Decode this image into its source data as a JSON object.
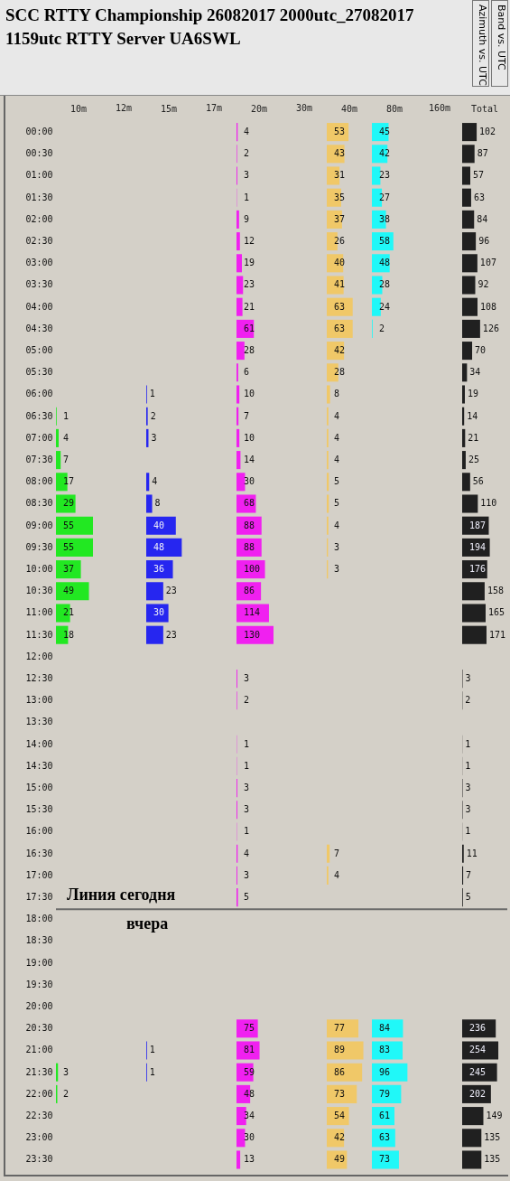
{
  "chart_data": [
    {
      "type": "other",
      "title": "SCC RTTY Championship 26082017 2000utc_27082017 1159utc RTTY Server UA6SWL",
      "annotations": [
        "Azimuth vs. UTC",
        "Band vs. UTC"
      ]
    },
    {
      "type": "bar",
      "orientation": "horizontal",
      "title": "10m",
      "tick_labels": "y",
      "data_labels": true,
      "categories": [
        "00:00",
        "00:30",
        "01:00",
        "01:30",
        "02:00",
        "02:30",
        "03:00",
        "03:30",
        "04:00",
        "04:30",
        "05:00",
        "05:30",
        "06:00",
        "06:30",
        "07:00",
        "07:30",
        "08:00",
        "08:30",
        "09:00",
        "09:30",
        "10:00",
        "10:30",
        "11:00",
        "11:30",
        "12:00",
        "12:30",
        "13:00",
        "13:30",
        "14:00",
        "14:30",
        "15:00",
        "15:30",
        "16:00",
        "16:30",
        "17:00",
        "17:30",
        "18:00",
        "18:30",
        "19:00",
        "19:30",
        "20:00",
        "20:30",
        "21:00",
        "21:30",
        "22:00",
        "22:30",
        "23:00",
        "23:30"
      ],
      "series": [
        {
          "color": "#22e822",
          "values": [
            null,
            null,
            null,
            null,
            null,
            null,
            null,
            null,
            null,
            null,
            null,
            null,
            null,
            1,
            4,
            7,
            17,
            29,
            55,
            55,
            37,
            49,
            21,
            18,
            null,
            null,
            null,
            null,
            null,
            null,
            null,
            null,
            null,
            null,
            null,
            null,
            null,
            null,
            null,
            null,
            null,
            null,
            null,
            3,
            2,
            null,
            null,
            null
          ]
        }
      ],
      "ref_lines": [
        {
          "axis": "y",
          "value": "18:00",
          "label": "Линия сегодня"
        }
      ],
      "annotations": [
        "вчера"
      ]
    },
    {
      "type": "other",
      "title": "12m"
    },
    {
      "type": "bar",
      "orientation": "horizontal",
      "title": "15m",
      "tick_labels": false,
      "data_labels": true,
      "categories": [
        null,
        null,
        null,
        null,
        null,
        null,
        null,
        null,
        null,
        null,
        null,
        null,
        null,
        null,
        null,
        null,
        null,
        null,
        null,
        null,
        null,
        null,
        null,
        null,
        null,
        null,
        null,
        null,
        null,
        null,
        null,
        null,
        null,
        null,
        null,
        null,
        null,
        null,
        null,
        null,
        null,
        null,
        null,
        null,
        null,
        null,
        null,
        null
      ],
      "series": [
        {
          "color": "#2626f0",
          "values": [
            null,
            null,
            null,
            null,
            null,
            null,
            null,
            null,
            null,
            null,
            null,
            null,
            1,
            2,
            3,
            null,
            4,
            8,
            40,
            48,
            36,
            23,
            30,
            23,
            null,
            null,
            null,
            null,
            null,
            null,
            null,
            null,
            null,
            null,
            null,
            null,
            null,
            null,
            null,
            null,
            null,
            null,
            1,
            1,
            null,
            null,
            null,
            null
          ]
        }
      ]
    },
    {
      "type": "other",
      "title": "17m"
    },
    {
      "type": "bar",
      "orientation": "horizontal",
      "title": "20m",
      "tick_labels": false,
      "data_labels": true,
      "categories": [
        null,
        null,
        null,
        null,
        null,
        null,
        null,
        null,
        null,
        null,
        null,
        null,
        null,
        null,
        null,
        null,
        null,
        null,
        null,
        null,
        null,
        null,
        null,
        null,
        null,
        null,
        null,
        null,
        null,
        null,
        null,
        null,
        null,
        null,
        null,
        null,
        null,
        null,
        null,
        null,
        null,
        null,
        null,
        null,
        null,
        null,
        null,
        null
      ],
      "series": [
        {
          "color": "#f020f0",
          "values": [
            4,
            2,
            3,
            1,
            9,
            12,
            19,
            23,
            21,
            61,
            28,
            6,
            10,
            7,
            10,
            14,
            30,
            68,
            88,
            88,
            100,
            86,
            114,
            130,
            null,
            3,
            2,
            null,
            1,
            1,
            3,
            3,
            1,
            4,
            3,
            5,
            null,
            null,
            null,
            null,
            null,
            75,
            81,
            59,
            48,
            34,
            30,
            13
          ]
        }
      ]
    },
    {
      "type": "other",
      "title": "30m"
    },
    {
      "type": "bar",
      "orientation": "horizontal",
      "title": "40m",
      "tick_labels": false,
      "data_labels": true,
      "categories": [
        null,
        null,
        null,
        null,
        null,
        null,
        null,
        null,
        null,
        null,
        null,
        null,
        null,
        null,
        null,
        null,
        null,
        null,
        null,
        null,
        null,
        null,
        null,
        null,
        null,
        null,
        null,
        null,
        null,
        null,
        null,
        null,
        null,
        null,
        null,
        null,
        null,
        null,
        null,
        null,
        null,
        null,
        null,
        null,
        null,
        null,
        null,
        null
      ],
      "series": [
        {
          "color": "#f0c868",
          "values": [
            53,
            43,
            31,
            35,
            37,
            26,
            40,
            41,
            63,
            63,
            42,
            28,
            8,
            4,
            4,
            4,
            5,
            5,
            4,
            3,
            3,
            null,
            null,
            null,
            null,
            null,
            null,
            null,
            null,
            null,
            null,
            null,
            null,
            7,
            4,
            null,
            null,
            null,
            null,
            null,
            null,
            77,
            89,
            86,
            73,
            54,
            42,
            49
          ]
        }
      ]
    },
    {
      "type": "bar",
      "orientation": "horizontal",
      "title": "80m",
      "tick_labels": false,
      "data_labels": true,
      "categories": [
        null,
        null,
        null,
        null,
        null,
        null,
        null,
        null,
        null,
        null,
        null,
        null,
        null,
        null,
        null,
        null,
        null,
        null,
        null,
        null,
        null,
        null,
        null,
        null,
        null,
        null,
        null,
        null,
        null,
        null,
        null,
        null,
        null,
        null,
        null,
        null,
        null,
        null,
        null,
        null,
        null,
        null,
        null,
        null,
        null,
        null,
        null,
        null
      ],
      "series": [
        {
          "color": "#20f8f8",
          "values": [
            45,
            42,
            23,
            27,
            38,
            58,
            48,
            28,
            24,
            2,
            null,
            null,
            null,
            null,
            null,
            null,
            null,
            null,
            null,
            null,
            null,
            null,
            null,
            null,
            null,
            null,
            null,
            null,
            null,
            null,
            null,
            null,
            null,
            null,
            null,
            null,
            null,
            null,
            null,
            null,
            null,
            84,
            83,
            96,
            79,
            61,
            63,
            73
          ]
        }
      ]
    },
    {
      "type": "other",
      "title": "160m"
    },
    {
      "type": "bar",
      "orientation": "horizontal",
      "title": "Total",
      "tick_labels": false,
      "data_labels": true,
      "categories": [
        null,
        null,
        null,
        null,
        null,
        null,
        null,
        null,
        null,
        null,
        null,
        null,
        null,
        null,
        null,
        null,
        null,
        null,
        null,
        null,
        null,
        null,
        null,
        null,
        null,
        null,
        null,
        null,
        null,
        null,
        null,
        null,
        null,
        null,
        null,
        null,
        null,
        null,
        null,
        null,
        null,
        null,
        null,
        null,
        null,
        null,
        null,
        null
      ],
      "series": [
        {
          "color": "#202020",
          "values": [
            102,
            87,
            57,
            63,
            84,
            96,
            107,
            92,
            108,
            126,
            70,
            34,
            19,
            14,
            21,
            25,
            56,
            110,
            187,
            194,
            176,
            158,
            165,
            171,
            null,
            3,
            2,
            null,
            1,
            1,
            3,
            3,
            1,
            11,
            7,
            5,
            null,
            null,
            null,
            null,
            null,
            236,
            254,
            245,
            202,
            149,
            135,
            135
          ]
        }
      ]
    }
  ]
}
